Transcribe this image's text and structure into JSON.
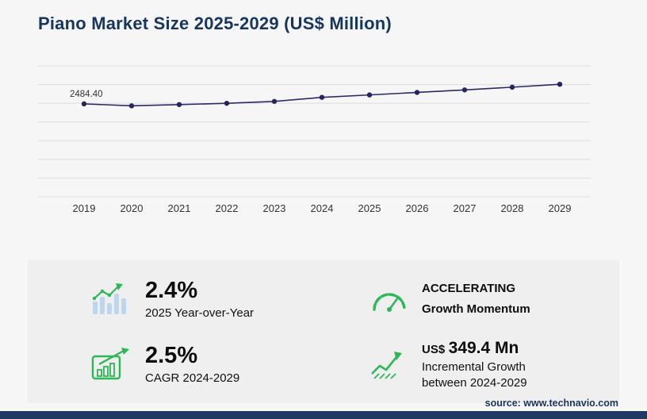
{
  "title": "Piano Market Size 2025-2029 (US$ Million)",
  "source": "source: www.technavio.com",
  "chart_data": {
    "type": "line",
    "title": "Piano Market Size 2025-2029 (US$ Million)",
    "x": [
      "2019",
      "2020",
      "2021",
      "2022",
      "2023",
      "2024",
      "2025",
      "2026",
      "2027",
      "2028",
      "2029"
    ],
    "values": [
      2484.4,
      2432,
      2465,
      2500,
      2550,
      2659,
      2723,
      2790,
      2858,
      2930,
      3008.4
    ],
    "first_point_label": "2484.40",
    "xlabel": "",
    "ylabel": "",
    "ylim": [
      0,
      3500
    ],
    "gridline_step": 500,
    "grid": true,
    "legend": "none",
    "line_color": "#2a2a66"
  },
  "stats": {
    "yoy": {
      "value": "2.4%",
      "label": "2025 Year-over-Year"
    },
    "momentum": {
      "line1": "ACCELERATING",
      "line2": "Growth Momentum"
    },
    "cagr": {
      "value": "2.5%",
      "label": "CAGR 2024-2029"
    },
    "incremental": {
      "currency": "US$",
      "value": "349.4 Mn",
      "line1": "Incremental Growth",
      "line2": "between 2024-2029"
    }
  },
  "colors": {
    "accent_green": "#2eb757",
    "light_blue_bar": "#bcd6f0",
    "navy": "#1f3864",
    "line_navy": "#2a2a66",
    "panel_gray": "#efefef"
  }
}
